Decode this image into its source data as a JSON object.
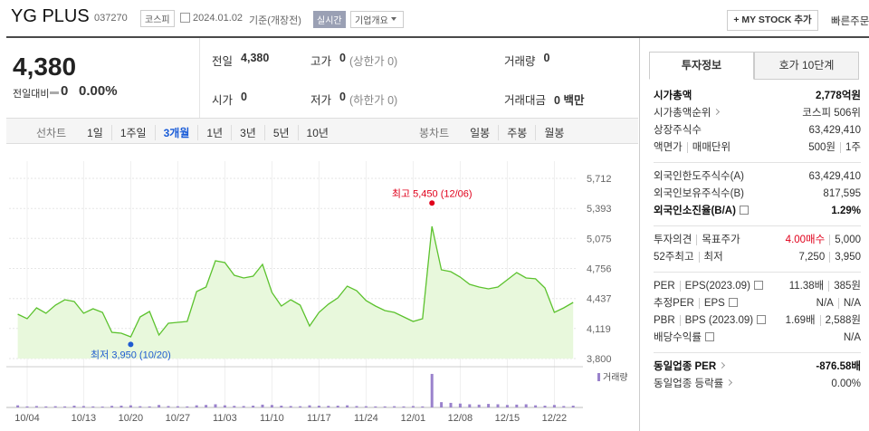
{
  "header": {
    "name": "YG PLUS",
    "code": "037270",
    "market": "코스피",
    "date": "2024.01.02",
    "date_note": "기준(개장전)",
    "realtime": "실시간",
    "company_info": "기업개요",
    "my_stock": "+ MY STOCK 추가",
    "quick_order": "빠른주문"
  },
  "quote": {
    "price": "4,380",
    "change_label": "전일대비",
    "change": "0",
    "change_rate": "0.00%",
    "items": [
      {
        "label": "전일",
        "value": "4,380"
      },
      {
        "label": "고가",
        "value": "0",
        "note": "(상한가 0)"
      },
      {
        "label": "거래량",
        "value": "0"
      },
      {
        "label": "시가",
        "value": "0"
      },
      {
        "label": "저가",
        "value": "0",
        "note": "(하한가 0)"
      },
      {
        "label": "거래대금",
        "value": "0 백만"
      }
    ]
  },
  "chart_tabs": {
    "line_label": "선차트",
    "line_periods": [
      "1일",
      "1주일",
      "3개월",
      "1년",
      "3년",
      "5년",
      "10년"
    ],
    "active": 2,
    "candle_label": "봉차트",
    "candle_periods": [
      "일봉",
      "주봉",
      "월봉"
    ]
  },
  "chart_data": {
    "type": "line",
    "categories": [
      null,
      "10/04",
      null,
      null,
      null,
      null,
      null,
      "10/13",
      null,
      null,
      null,
      null,
      "10/20",
      null,
      null,
      null,
      null,
      "10/27",
      null,
      null,
      null,
      null,
      "11/03",
      null,
      null,
      null,
      null,
      "11/10",
      null,
      null,
      null,
      null,
      "11/17",
      null,
      null,
      null,
      null,
      "11/24",
      null,
      null,
      null,
      null,
      "12/01",
      null,
      null,
      null,
      null,
      "12/08",
      null,
      null,
      null,
      null,
      "12/15",
      null,
      null,
      null,
      null,
      "12/22",
      null,
      null
    ],
    "series": [
      {
        "color": "#5cc22e",
        "fill": "#e8f8dc",
        "values": [
          4271,
          4223,
          4338,
          4280,
          4367,
          4425,
          4405,
          4280,
          4328,
          4290,
          4079,
          4069,
          4031,
          4242,
          4300,
          4050,
          4175,
          4184,
          4194,
          4511,
          4559,
          4838,
          4818,
          4684,
          4655,
          4674,
          4799,
          4501,
          4357,
          4425,
          4367,
          4146,
          4290,
          4377,
          4444,
          4569,
          4521,
          4415,
          4357,
          4309,
          4290,
          4242,
          4194,
          4223,
          5203,
          4742,
          4722,
          4665,
          4588,
          4559,
          4540,
          4559,
          4636,
          4713,
          4655,
          4646,
          4549,
          4290,
          4338,
          4396
        ]
      }
    ],
    "volume": {
      "name": "거래량",
      "color": "#9a82cc",
      "ylim": [
        0,
        10000000
      ],
      "values": [
        600000,
        300000,
        400000,
        300000,
        350000,
        300000,
        500000,
        400000,
        300000,
        250000,
        450000,
        500000,
        600000,
        350000,
        300000,
        700000,
        400000,
        350000,
        300000,
        600000,
        700000,
        900000,
        600000,
        450000,
        400000,
        500000,
        800000,
        700000,
        500000,
        400000,
        350000,
        600000,
        500000,
        450000,
        500000,
        600000,
        400000,
        350000,
        300000,
        300000,
        350000,
        300000,
        400000,
        300000,
        9500000,
        1500000,
        1300000,
        1100000,
        900000,
        800000,
        1000000,
        900000,
        700000,
        800000,
        900000,
        600000,
        500000,
        700000,
        400000,
        500000
      ]
    },
    "annotations": [
      {
        "text": "최고 5,450 (12/06)",
        "value": 5450,
        "color": "#e0001b"
      },
      {
        "text": "최저 3,950 (10/20)",
        "value": 3950,
        "color": "#1f5bd1"
      }
    ],
    "ylim": [
      3800,
      5712
    ],
    "yticks": [
      {
        "value": 3800,
        "label": "3,800"
      },
      {
        "value": 4119,
        "label": "4,119"
      },
      {
        "value": 4437,
        "label": "4,437"
      },
      {
        "value": 4756,
        "label": "4,756"
      },
      {
        "value": 5075,
        "label": "5,075"
      },
      {
        "value": 5393,
        "label": "5,393"
      },
      {
        "value": 5712,
        "label": "5,712"
      }
    ],
    "grid": true
  },
  "sidebar": {
    "tabs": [
      "투자정보",
      "호가 10단계"
    ],
    "active": 0,
    "sections": [
      [
        {
          "label": [
            "시가총액"
          ],
          "value": [
            "2,778억원"
          ],
          "bold": true
        },
        {
          "label": [
            "시가총액순위"
          ],
          "value": [
            "코스피 506위"
          ],
          "more": true
        },
        {
          "label": [
            "상장주식수"
          ],
          "value": [
            "63,429,410"
          ]
        },
        {
          "label": [
            "액면가",
            "매매단위"
          ],
          "value": [
            "500원",
            "1주"
          ]
        }
      ],
      [
        {
          "label": [
            "외국인한도주식수(A)"
          ],
          "value": [
            "63,429,410"
          ]
        },
        {
          "label": [
            "외국인보유주식수(B)"
          ],
          "value": [
            "817,595"
          ]
        },
        {
          "label": [
            "외국인소진율(B/A)"
          ],
          "value": [
            "1.29%"
          ],
          "bold": true,
          "info": true
        }
      ],
      [
        {
          "label": [
            "투자의견",
            "목표주가"
          ],
          "value": [
            "4.00매수",
            "5,000"
          ],
          "accent": "#e0001b"
        },
        {
          "label": [
            "52주최고",
            "최저"
          ],
          "value": [
            "7,250",
            "3,950"
          ]
        }
      ],
      [
        {
          "label": [
            "PER",
            "EPS(2023.09)"
          ],
          "value": [
            "11.38배",
            "385원"
          ],
          "info": true
        },
        {
          "label": [
            "추정PER",
            "EPS"
          ],
          "value": [
            "N/A",
            "N/A"
          ],
          "info": true
        },
        {
          "label": [
            "PBR",
            "BPS (2023.09)"
          ],
          "value": [
            "1.69배",
            "2,588원"
          ],
          "info": true
        },
        {
          "label": [
            "배당수익률"
          ],
          "value": [
            "N/A"
          ],
          "info": true
        }
      ],
      [
        {
          "label": [
            "동일업종 PER"
          ],
          "value": [
            "-876.58배"
          ],
          "bold": true,
          "more": true
        },
        {
          "label": [
            "동일업종 등락률"
          ],
          "value": [
            "0.00%"
          ],
          "more": true
        }
      ]
    ]
  }
}
